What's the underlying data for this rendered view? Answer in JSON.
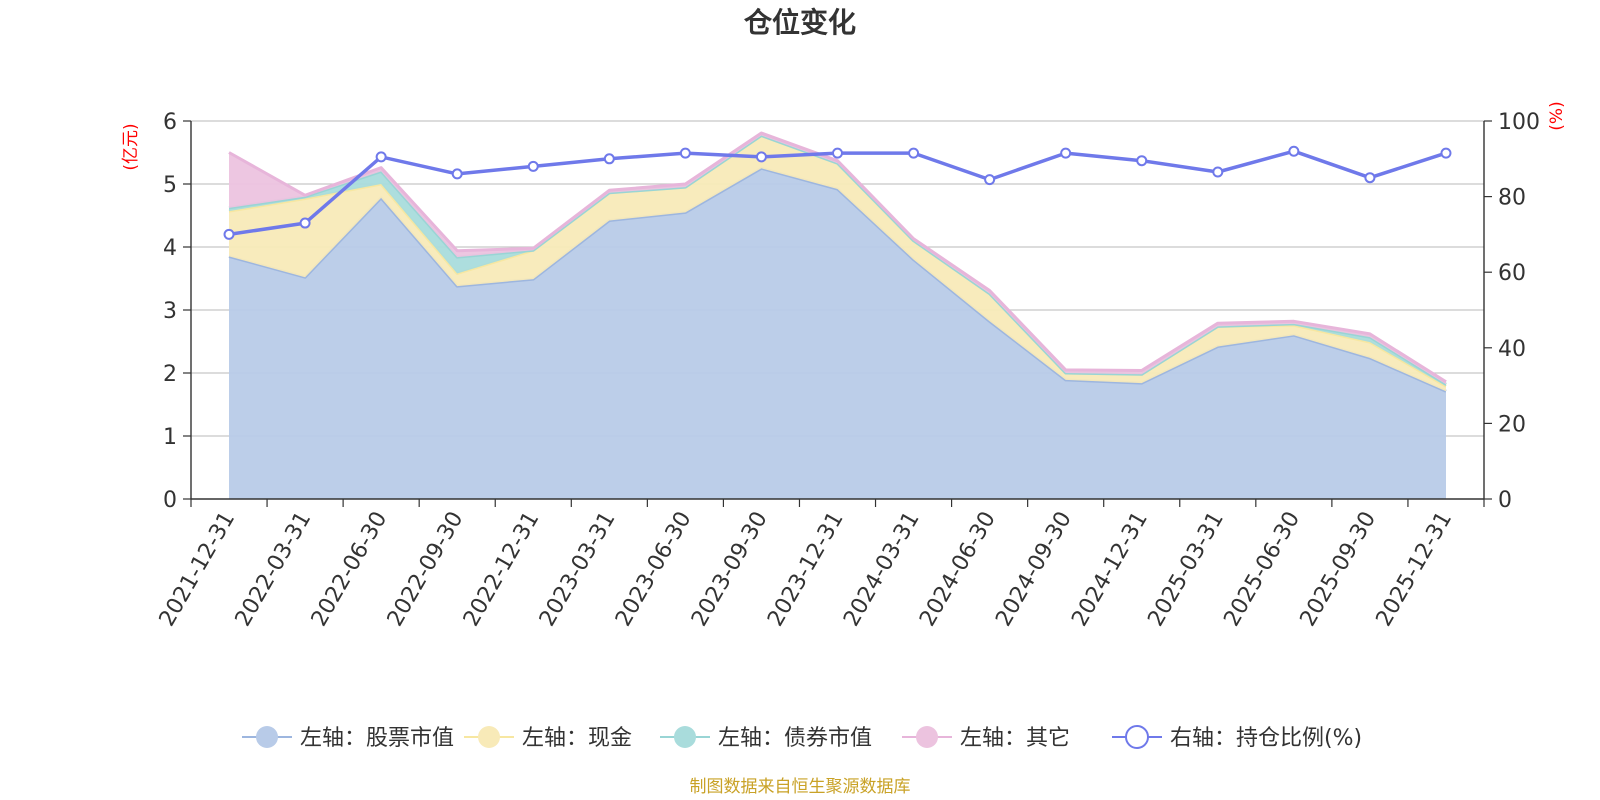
{
  "chart_data": {
    "type": "area",
    "title": "仓位变化",
    "x": [
      "2021-12-31",
      "2022-03-31",
      "2022-06-30",
      "2022-09-30",
      "2022-12-31",
      "2023-03-31",
      "2023-06-30",
      "2023-09-30",
      "2023-12-31",
      "2024-03-31",
      "2024-06-30",
      "2024-09-30",
      "2024-12-31",
      "2025-03-31",
      "2025-06-30",
      "2025-09-30",
      "2025-12-31"
    ],
    "left_axis": {
      "unit": "(亿元)",
      "ylim": [
        0,
        6
      ],
      "ticks": [
        "0",
        "1",
        "2",
        "3",
        "4",
        "5",
        "6"
      ]
    },
    "right_axis": {
      "unit": "(%)",
      "ylim": [
        0,
        100
      ],
      "ticks": [
        "0",
        "20",
        "40",
        "60",
        "80",
        "100"
      ]
    },
    "stacked": true,
    "series": [
      {
        "name": "左轴：股票市值",
        "axis": "left",
        "type": "area",
        "color": "#9db6df",
        "fill": "#b8cbe8",
        "values": [
          3.85,
          3.52,
          4.78,
          3.38,
          3.49,
          4.42,
          4.55,
          5.25,
          4.92,
          3.8,
          2.82,
          1.89,
          1.84,
          2.42,
          2.6,
          2.24,
          1.71
        ]
      },
      {
        "name": "左轴：现金",
        "axis": "left",
        "type": "area",
        "color": "#f7e7a1",
        "fill": "#f8eab8",
        "values": [
          0.72,
          1.25,
          0.22,
          0.2,
          0.46,
          0.44,
          0.4,
          0.52,
          0.41,
          0.3,
          0.44,
          0.11,
          0.14,
          0.32,
          0.16,
          0.25,
          0.08
        ]
      },
      {
        "name": "左轴：债券市值",
        "axis": "left",
        "type": "area",
        "color": "#99d5d5",
        "fill": "#a9dcdc",
        "values": [
          0.05,
          0.03,
          0.2,
          0.26,
          0.0,
          0.0,
          0.0,
          0.0,
          0.0,
          0.0,
          0.0,
          0.0,
          0.0,
          0.0,
          0.02,
          0.08,
          0.03
        ]
      },
      {
        "name": "左轴：其它",
        "axis": "left",
        "type": "area",
        "color": "#e7b5da",
        "fill": "#ecc3df",
        "values": [
          0.88,
          0.02,
          0.06,
          0.1,
          0.03,
          0.04,
          0.05,
          0.04,
          0.04,
          0.03,
          0.05,
          0.05,
          0.06,
          0.05,
          0.04,
          0.05,
          0.04
        ]
      },
      {
        "name": "右轴：持仓比例(%)",
        "axis": "right",
        "type": "line",
        "color": "#6f79ea",
        "values": [
          70,
          73,
          90.5,
          86,
          88,
          90,
          91.5,
          90.5,
          91.5,
          91.5,
          84.5,
          91.5,
          89.5,
          86.5,
          92,
          85,
          91.5
        ]
      }
    ],
    "legend_position": "bottom",
    "grid": true
  },
  "source_text": "制图数据来自恒生聚源数据库",
  "colors": {
    "axis_unit": "#ff0000",
    "source": "#c9a227",
    "grid": "#c8c8c8",
    "axis": "#333333"
  }
}
